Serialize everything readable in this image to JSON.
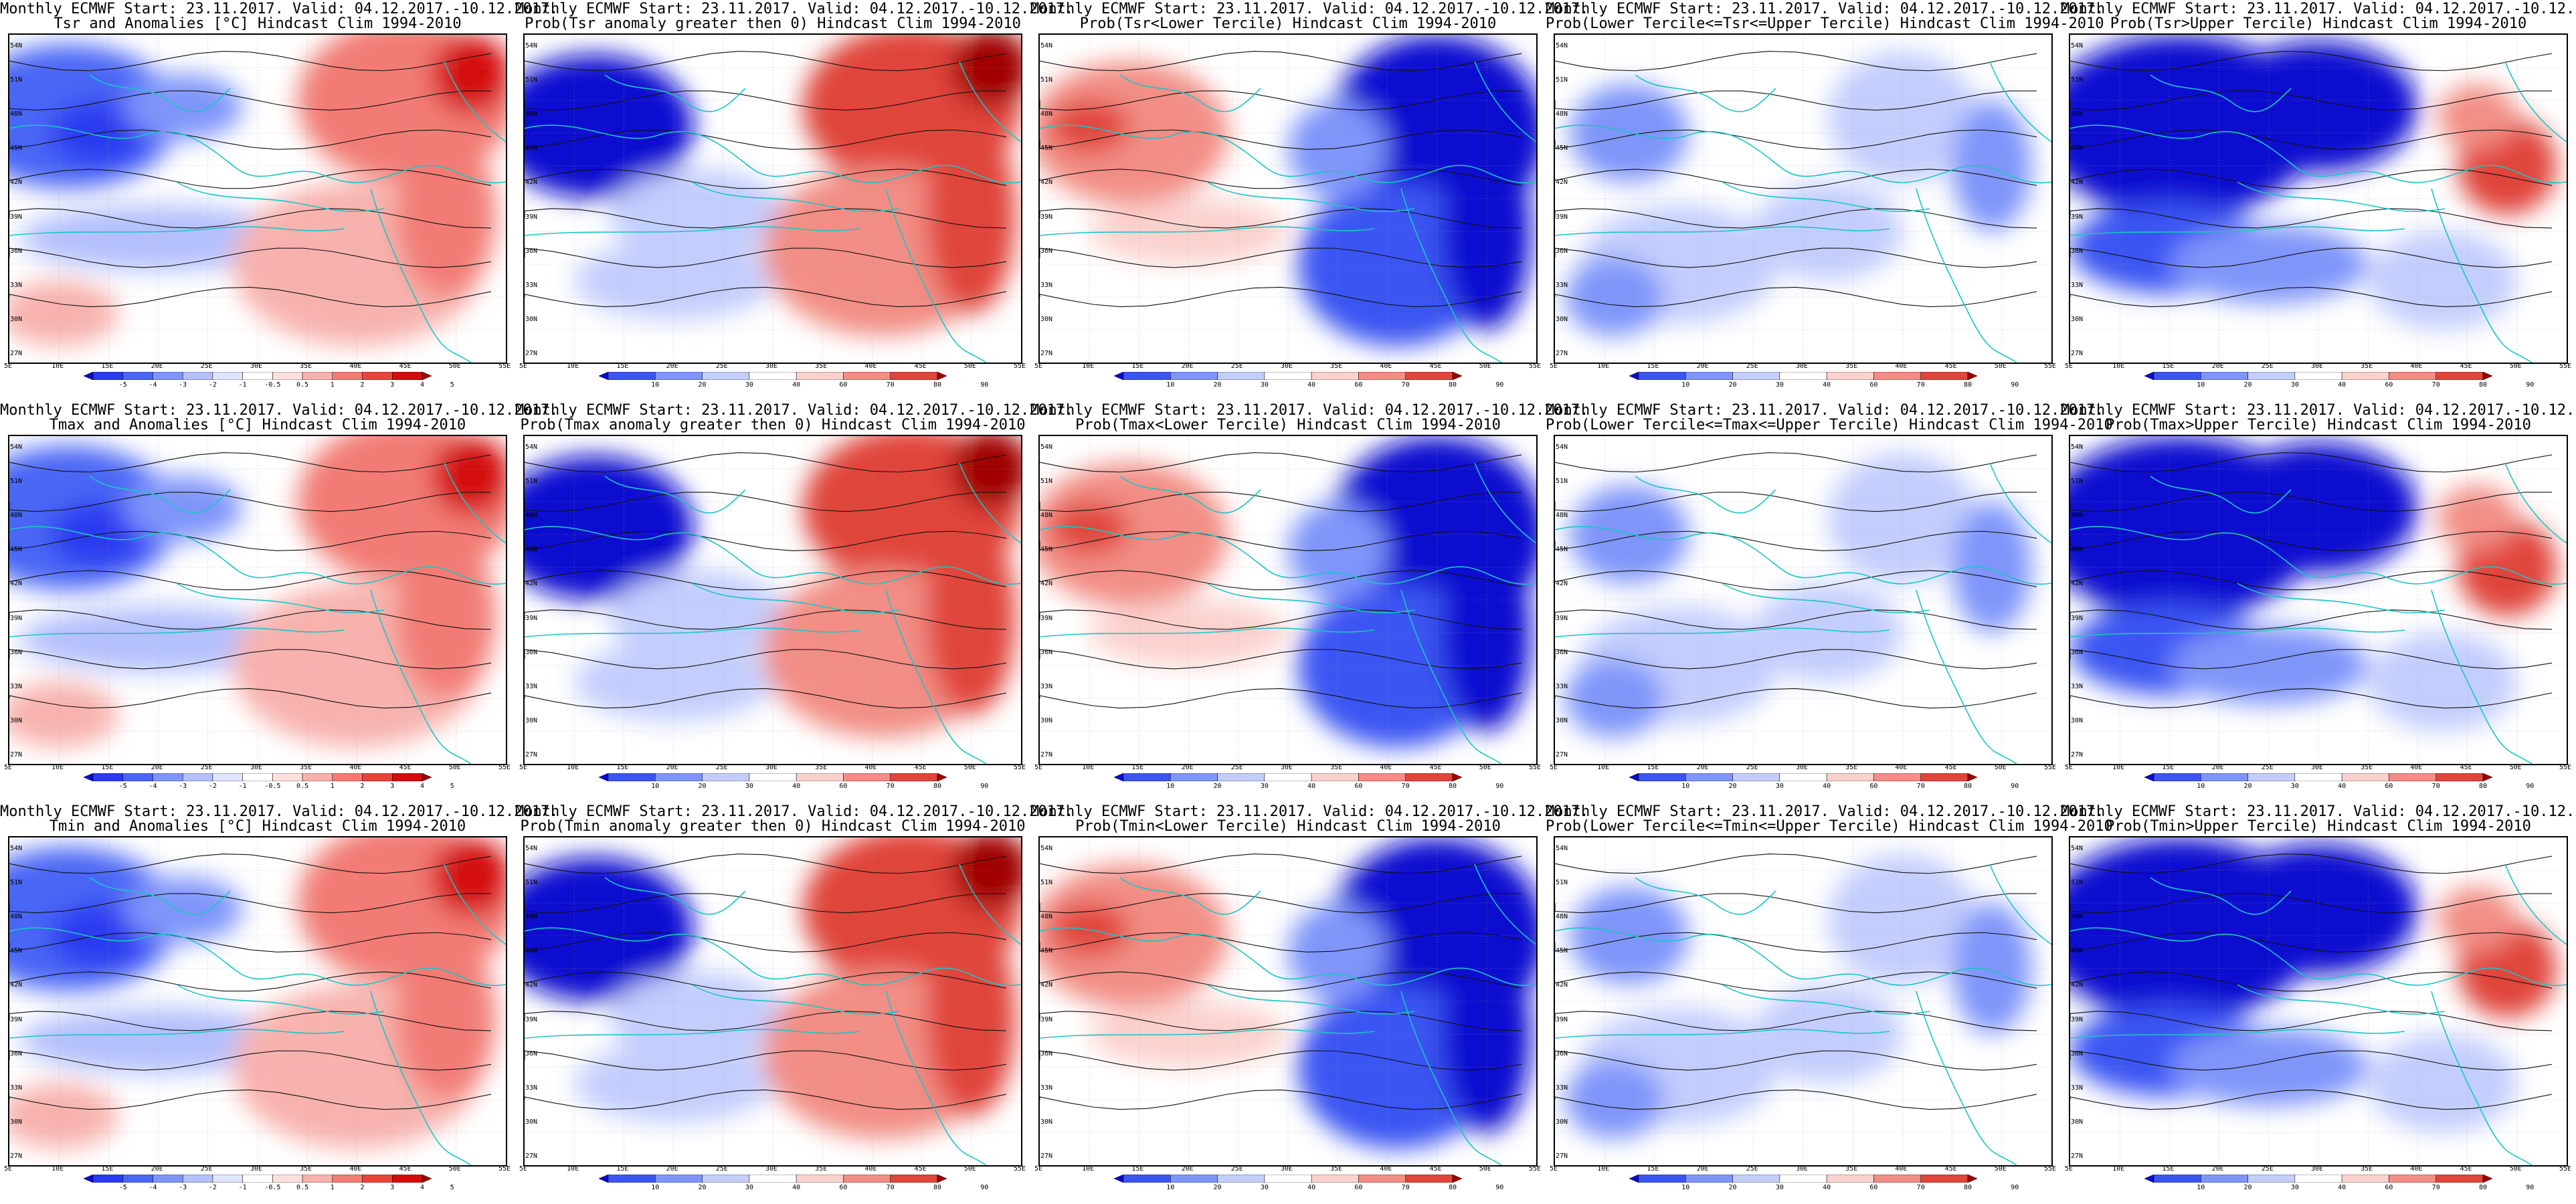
{
  "header_line": "Monthly ECMWF Start: 23.11.2017. Valid: 04.12.2017.-10.12.2017.",
  "lat_labels": [
    "54N",
    "51N",
    "48N",
    "45N",
    "42N",
    "39N",
    "36N",
    "33N",
    "30N",
    "27N"
  ],
  "lon_labels": [
    "5E",
    "10E",
    "15E",
    "20E",
    "25E",
    "30E",
    "35E",
    "40E",
    "45E",
    "50E",
    "55E"
  ],
  "anomaly_scale": {
    "labels": [
      "-5",
      "-4",
      "-3",
      "-2",
      "-1",
      "-0.5",
      "0.5",
      "1",
      "2",
      "3",
      "4",
      "5"
    ],
    "colors": [
      "#0a0ad0",
      "#2a3af0",
      "#4a66f5",
      "#7f95fa",
      "#b3c0fc",
      "#dfe5fe",
      "#ffffff",
      "#fde0de",
      "#f8b2ad",
      "#f27c74",
      "#e84538",
      "#d40c0c",
      "#a00000"
    ]
  },
  "probability_scale": {
    "labels": [
      "10",
      "20",
      "30",
      "40",
      "60",
      "70",
      "80",
      "90"
    ],
    "colors": [
      "#0a0ad0",
      "#3b55f2",
      "#7f95fa",
      "#c3cefd",
      "#ffffff",
      "#fbd1cd",
      "#f28e85",
      "#e0453a",
      "#a00000"
    ]
  },
  "panels": [
    {
      "row": 0,
      "col": 0,
      "title": "Tsr and Anomalies [°C] Hindcast Clim 1994-2010",
      "scale": "anomaly",
      "pattern": "anom"
    },
    {
      "row": 0,
      "col": 1,
      "title": "Prob(Tsr anomaly greater then 0) Hindcast Clim 1994-2010",
      "scale": "probability",
      "pattern": "pos"
    },
    {
      "row": 0,
      "col": 2,
      "title": "Prob(Tsr<Lower Tercile) Hindcast Clim 1994-2010",
      "scale": "probability",
      "pattern": "lower"
    },
    {
      "row": 0,
      "col": 3,
      "title": "Prob(Lower Tercile<=Tsr<=Upper Tercile) Hindcast Clim 1994-2010",
      "scale": "probability",
      "pattern": "middle"
    },
    {
      "row": 0,
      "col": 4,
      "title": "Prob(Tsr>Upper Tercile) Hindcast Clim 1994-2010",
      "scale": "probability",
      "pattern": "upper"
    },
    {
      "row": 1,
      "col": 0,
      "title": "Tmax and Anomalies [°C] Hindcast Clim 1994-2010",
      "scale": "anomaly",
      "pattern": "anom"
    },
    {
      "row": 1,
      "col": 1,
      "title": "Prob(Tmax anomaly greater then 0) Hindcast Clim 1994-2010",
      "scale": "probability",
      "pattern": "pos"
    },
    {
      "row": 1,
      "col": 2,
      "title": "Prob(Tmax<Lower Tercile) Hindcast Clim 1994-2010",
      "scale": "probability",
      "pattern": "lower"
    },
    {
      "row": 1,
      "col": 3,
      "title": "Prob(Lower Tercile<=Tmax<=Upper Tercile) Hindcast Clim 1994-2010",
      "scale": "probability",
      "pattern": "middle"
    },
    {
      "row": 1,
      "col": 4,
      "title": "Prob(Tmax>Upper Tercile) Hindcast Clim 1994-2010",
      "scale": "probability",
      "pattern": "upper"
    },
    {
      "row": 2,
      "col": 0,
      "title": "Tmin and Anomalies [°C] Hindcast Clim 1994-2010",
      "scale": "anomaly",
      "pattern": "anom"
    },
    {
      "row": 2,
      "col": 1,
      "title": "Prob(Tmin anomaly greater then 0) Hindcast Clim 1994-2010",
      "scale": "probability",
      "pattern": "pos"
    },
    {
      "row": 2,
      "col": 2,
      "title": "Prob(Tmin<Lower Tercile) Hindcast Clim 1994-2010",
      "scale": "probability",
      "pattern": "lower"
    },
    {
      "row": 2,
      "col": 3,
      "title": "Prob(Lower Tercile<=Tmin<=Upper Tercile) Hindcast Clim 1994-2010",
      "scale": "probability",
      "pattern": "middle"
    },
    {
      "row": 2,
      "col": 4,
      "title": "Prob(Tmin>Upper Tercile) Hindcast Clim 1994-2010",
      "scale": "probability",
      "pattern": "upper"
    }
  ]
}
